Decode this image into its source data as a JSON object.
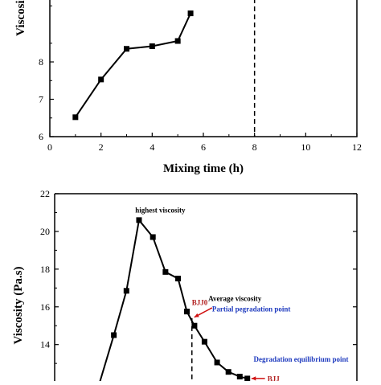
{
  "chart_data": [
    {
      "type": "line",
      "xlabel": "Mixing time (h)",
      "ylabel": "Viscosity (",
      "xlim": [
        0,
        12
      ],
      "ylim": [
        6,
        9.7
      ],
      "x_ticks": [
        "0",
        "2",
        "4",
        "6",
        "8",
        "10",
        "12"
      ],
      "y_ticks": [
        "6",
        "7",
        "8"
      ],
      "grid": false,
      "legend": "none",
      "series": [
        {
          "x": [
            1,
            2,
            3,
            4,
            5,
            5.5
          ],
          "y": [
            6.52,
            7.53,
            8.35,
            8.42,
            8.56,
            9.3
          ]
        }
      ],
      "reference_lines": [
        {
          "orientation": "vertical",
          "x": 8,
          "style": "dashed"
        }
      ],
      "colors": {
        "line": "#000000",
        "marker": "#000000"
      }
    },
    {
      "type": "line",
      "xlabel": "",
      "ylabel": "Viscosity (Pa.s)",
      "xlim": [
        0,
        12
      ],
      "ylim": [
        11.8,
        22
      ],
      "y_ticks": [
        "14",
        "16",
        "18",
        "20",
        "22"
      ],
      "grid": false,
      "legend": "none",
      "series": [
        {
          "x": [
            1.7,
            2.35,
            2.85,
            3.35,
            3.9,
            4.4,
            4.9,
            5.25,
            5.55,
            5.95,
            6.45,
            6.9,
            7.35,
            7.65
          ],
          "y": [
            11.6,
            14.5,
            16.85,
            20.6,
            19.7,
            17.85,
            17.5,
            15.75,
            15.0,
            14.15,
            13.05,
            12.55,
            12.3,
            12.2
          ]
        }
      ],
      "reference_lines": [
        {
          "orientation": "vertical",
          "x": 5.45,
          "y_max": 15.4,
          "style": "dashed"
        }
      ],
      "annotations": [
        {
          "text": "highest viscosity",
          "x": 3.2,
          "y": 21.0,
          "color": "#000000"
        },
        {
          "text": "Average viscosity",
          "x": 6.1,
          "y": 16.3,
          "color": "#000000"
        },
        {
          "text": "BJJ0",
          "x": 5.45,
          "y": 16.1,
          "color": "#b22222"
        },
        {
          "text": "Partial pegradation point",
          "x": 6.25,
          "y": 15.75,
          "color": "#1f3bbf"
        },
        {
          "text": "Degradation equilibrium point",
          "x": 7.9,
          "y": 13.1,
          "color": "#1f3bbf"
        },
        {
          "text": "BJJ",
          "x": 8.45,
          "y": 12.05,
          "color": "#b22222"
        }
      ],
      "colors": {
        "line": "#000000",
        "marker": "#000000",
        "arrow": "#d01010"
      }
    }
  ]
}
